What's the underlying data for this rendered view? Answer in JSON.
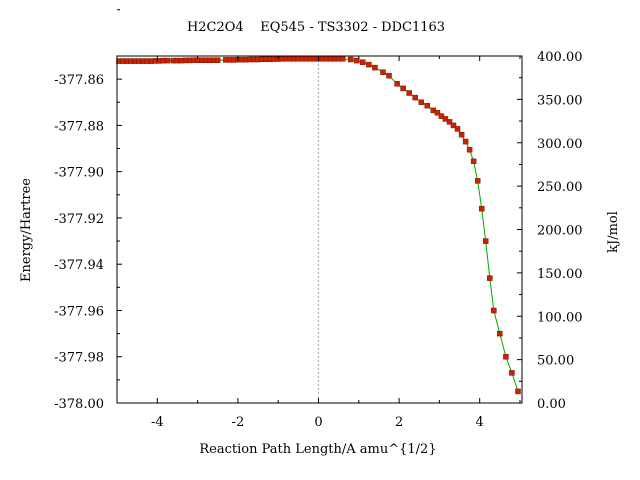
{
  "chart_data": {
    "type": "line",
    "title": "H2C2O4    EQ545 - TS3302 - DDC1163",
    "xlabel": "Reaction Path Length/A amu^{1/2}",
    "ylabel": "Energy/Hartree",
    "y2label": "kJ/mol",
    "xlim": [
      -5.0,
      5.05
    ],
    "ylim": [
      -378.0,
      -377.85
    ],
    "y2lim": [
      0.0,
      400.0
    ],
    "x_ticks": [
      -4,
      -2,
      0,
      2,
      4
    ],
    "x_tick_labels": [
      "-4",
      "-2",
      "0",
      "2",
      "4"
    ],
    "y_ticks": [
      -377.86,
      -377.88,
      -377.9,
      -377.92,
      -377.94,
      -377.96,
      -377.98,
      -378.0
    ],
    "y_tick_labels": [
      "-377.86",
      "-377.88",
      "-377.90",
      "-377.92",
      "-377.94",
      "-377.96",
      "-377.98",
      "-378.00"
    ],
    "y2_ticks": [
      400,
      350,
      300,
      250,
      200,
      150,
      100,
      50,
      0
    ],
    "y2_tick_labels": [
      "400.00",
      "350.00",
      "300.00",
      "250.00",
      "200.00",
      "150.00",
      "100.00",
      "50.00",
      "0.00"
    ],
    "ts_line_x": 0,
    "grid": false,
    "line_color": "#00aa00",
    "marker_color": "#cc2200",
    "ts_line_color": "#aaaaaa",
    "series": [
      {
        "x": [
          -4.95,
          -4.85,
          -4.75,
          -4.65,
          -4.55,
          -4.45,
          -4.35,
          -4.25,
          -4.15,
          -4.05,
          -3.95,
          -3.85,
          -3.75,
          -3.6,
          -3.5,
          -3.4,
          -3.3,
          -3.2,
          -3.1,
          -3.0,
          -2.9,
          -2.8,
          -2.7,
          -2.6,
          -2.5,
          -2.3,
          -2.2,
          -2.1,
          -2.0,
          -1.9,
          -1.8,
          -1.7,
          -1.6,
          -1.5,
          -1.4,
          -1.3,
          -1.2,
          -1.1,
          -1.0,
          -0.9,
          -0.8,
          -0.7,
          -0.6,
          -0.5,
          -0.4,
          -0.3,
          -0.2,
          -0.1,
          0.0,
          0.1,
          0.2,
          0.3,
          0.4,
          0.5,
          0.6,
          0.8,
          0.95,
          1.1,
          1.25,
          1.4,
          1.6,
          1.75,
          1.95,
          2.1,
          2.25,
          2.4,
          2.55,
          2.7,
          2.85,
          2.95,
          3.05,
          3.15,
          3.25,
          3.35,
          3.45,
          3.55,
          3.65,
          3.75,
          3.85,
          3.95,
          4.05,
          4.15,
          4.25,
          4.35,
          4.5,
          4.65,
          4.8,
          4.95
        ],
        "y": [
          -377.8522,
          -377.8522,
          -377.8522,
          -377.8522,
          -377.8522,
          -377.8522,
          -377.8522,
          -377.8522,
          -377.8522,
          -377.8521,
          -377.8521,
          -377.852,
          -377.852,
          -377.852,
          -377.852,
          -377.852,
          -377.8519,
          -377.8519,
          -377.8518,
          -377.8518,
          -377.8518,
          -377.8518,
          -377.8518,
          -377.8518,
          -377.8518,
          -377.8517,
          -377.8517,
          -377.8517,
          -377.8516,
          -377.8516,
          -377.8516,
          -377.8515,
          -377.8515,
          -377.8515,
          -377.8514,
          -377.8514,
          -377.8514,
          -377.8513,
          -377.8513,
          -377.8512,
          -377.8512,
          -377.8512,
          -377.8512,
          -377.8512,
          -377.8512,
          -377.8512,
          -377.8512,
          -377.8512,
          -377.8512,
          -377.8512,
          -377.8512,
          -377.8512,
          -377.8512,
          -377.8512,
          -377.8512,
          -377.8515,
          -377.852,
          -377.8527,
          -377.8537,
          -377.855,
          -377.857,
          -377.8585,
          -377.862,
          -377.864,
          -377.866,
          -377.868,
          -377.87,
          -377.8715,
          -377.8735,
          -377.8745,
          -377.876,
          -377.8772,
          -377.8785,
          -377.88,
          -377.8815,
          -377.884,
          -377.887,
          -377.8905,
          -377.8955,
          -377.904,
          -377.916,
          -377.93,
          -377.946,
          -377.96,
          -377.97,
          -377.98,
          -377.987,
          -377.995
        ]
      }
    ]
  }
}
